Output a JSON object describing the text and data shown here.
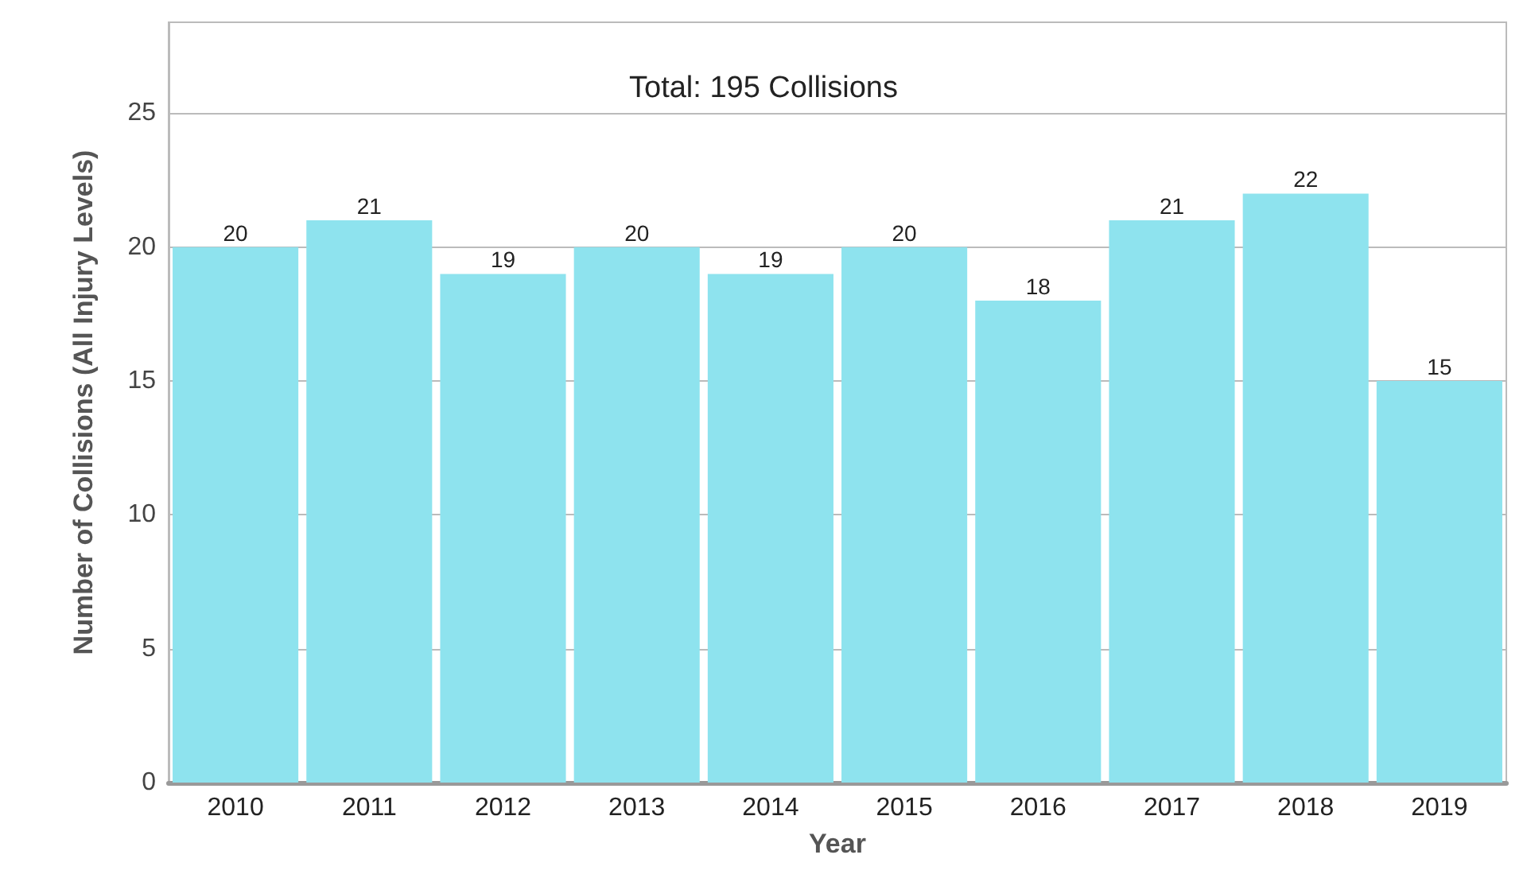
{
  "chart_data": {
    "type": "bar",
    "xlabel": "Year",
    "ylabel": "Number of Collisions (All Injury Levels)",
    "annotations": [
      "Total: 195 Collisions"
    ],
    "categories": [
      "2010",
      "2011",
      "2012",
      "2013",
      "2014",
      "2015",
      "2016",
      "2017",
      "2018",
      "2019"
    ],
    "values": [
      20,
      21,
      19,
      20,
      19,
      20,
      18,
      21,
      22,
      15
    ],
    "color": "#8ee3ee",
    "ylim": [
      0,
      28.4
    ],
    "yticks": [
      0,
      5,
      10,
      15,
      20,
      25
    ],
    "grid": "y",
    "data_labels": true
  }
}
